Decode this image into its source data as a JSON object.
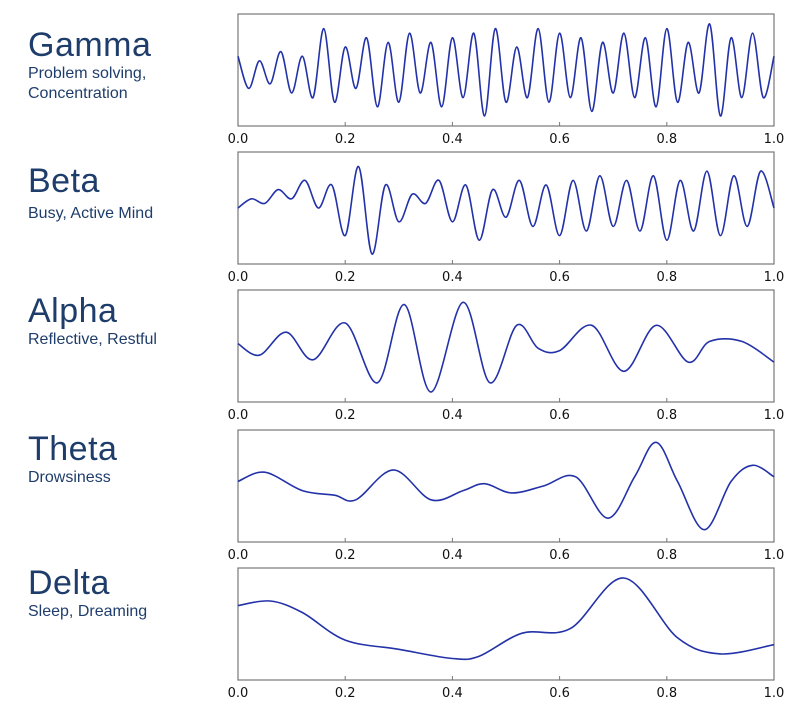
{
  "bands": [
    {
      "name": "Gamma",
      "description": [
        "Problem solving,",
        "Concentration"
      ]
    },
    {
      "name": "Beta",
      "description": [
        "Busy, Active Mind"
      ]
    },
    {
      "name": "Alpha",
      "description": [
        "Reflective, Restful"
      ]
    },
    {
      "name": "Theta",
      "description": [
        "Drowsiness"
      ]
    },
    {
      "name": "Delta",
      "description": [
        "Sleep, Dreaming"
      ]
    }
  ],
  "colors": {
    "trace": "#2332a8",
    "label": "#1f3d6b",
    "frame": "#777777"
  },
  "chart_data": [
    {
      "type": "line",
      "series_label": "Gamma",
      "xlim": [
        0,
        1
      ],
      "x_ticks": [
        "0.0",
        "0.2",
        "0.4",
        "0.6",
        "0.8",
        "1.0"
      ],
      "x": [
        0,
        0.02,
        0.04,
        0.06,
        0.08,
        0.1,
        0.12,
        0.14,
        0.16,
        0.18,
        0.2,
        0.22,
        0.24,
        0.26,
        0.28,
        0.3,
        0.32,
        0.34,
        0.36,
        0.38,
        0.4,
        0.42,
        0.44,
        0.46,
        0.48,
        0.5,
        0.52,
        0.54,
        0.56,
        0.58,
        0.6,
        0.62,
        0.64,
        0.66,
        0.68,
        0.7,
        0.72,
        0.74,
        0.76,
        0.78,
        0.8,
        0.82,
        0.84,
        0.86,
        0.88,
        0.9,
        0.92,
        0.94,
        0.96,
        0.98,
        1.0
      ],
      "y": [
        0.3,
        -0.4,
        0.2,
        -0.3,
        0.4,
        -0.5,
        0.3,
        -0.6,
        0.9,
        -0.7,
        0.5,
        -0.4,
        0.7,
        -0.8,
        0.6,
        -0.7,
        0.8,
        -0.5,
        0.6,
        -0.8,
        0.7,
        -0.6,
        0.8,
        -1.0,
        0.9,
        -0.7,
        0.5,
        -0.6,
        0.9,
        -0.7,
        0.8,
        -0.6,
        0.7,
        -0.9,
        0.6,
        -0.5,
        0.8,
        -0.6,
        0.7,
        -0.8,
        0.9,
        -0.7,
        0.6,
        -0.5,
        1.0,
        -1.0,
        0.7,
        -0.6,
        0.8,
        -0.6,
        0.3
      ]
    },
    {
      "type": "line",
      "series_label": "Beta",
      "xlim": [
        0,
        1
      ],
      "x_ticks": [
        "0.0",
        "0.2",
        "0.4",
        "0.6",
        "0.8",
        "1.0"
      ],
      "x": [
        0,
        0.025,
        0.05,
        0.075,
        0.1,
        0.125,
        0.15,
        0.175,
        0.2,
        0.225,
        0.25,
        0.275,
        0.3,
        0.325,
        0.35,
        0.375,
        0.4,
        0.425,
        0.45,
        0.475,
        0.5,
        0.525,
        0.55,
        0.575,
        0.6,
        0.625,
        0.65,
        0.675,
        0.7,
        0.725,
        0.75,
        0.775,
        0.8,
        0.825,
        0.85,
        0.875,
        0.9,
        0.925,
        0.95,
        0.975,
        1.0
      ],
      "y": [
        0.0,
        0.2,
        0.1,
        0.4,
        0.2,
        0.6,
        0.0,
        0.5,
        -0.6,
        0.9,
        -1.0,
        0.5,
        -0.3,
        0.3,
        0.1,
        0.6,
        -0.3,
        0.5,
        -0.7,
        0.4,
        -0.2,
        0.6,
        -0.4,
        0.5,
        -0.6,
        0.6,
        -0.5,
        0.7,
        -0.4,
        0.6,
        -0.5,
        0.7,
        -0.7,
        0.6,
        -0.5,
        0.8,
        -0.6,
        0.7,
        -0.4,
        0.8,
        0.0
      ]
    },
    {
      "type": "line",
      "series_label": "Alpha",
      "xlim": [
        0,
        1
      ],
      "x_ticks": [
        "0.0",
        "0.2",
        "0.4",
        "0.6",
        "0.8",
        "1.0"
      ],
      "x": [
        0,
        0.04,
        0.09,
        0.14,
        0.2,
        0.26,
        0.31,
        0.36,
        0.42,
        0.47,
        0.52,
        0.56,
        0.6,
        0.66,
        0.72,
        0.78,
        0.84,
        0.88,
        0.94,
        1.0
      ],
      "y": [
        0.05,
        -0.2,
        0.3,
        -0.3,
        0.5,
        -0.8,
        0.9,
        -1.0,
        0.95,
        -0.8,
        0.45,
        -0.05,
        -0.1,
        0.45,
        -0.55,
        0.45,
        -0.35,
        0.1,
        0.1,
        -0.35
      ]
    },
    {
      "type": "line",
      "series_label": "Theta",
      "xlim": [
        0,
        1
      ],
      "x_ticks": [
        "0.0",
        "0.2",
        "0.4",
        "0.6",
        "0.8",
        "1.0"
      ],
      "x": [
        0,
        0.05,
        0.12,
        0.18,
        0.22,
        0.29,
        0.36,
        0.42,
        0.46,
        0.51,
        0.57,
        0.63,
        0.69,
        0.74,
        0.78,
        0.82,
        0.87,
        0.92,
        0.96,
        1.0
      ],
      "y": [
        0.1,
        0.3,
        -0.1,
        -0.2,
        -0.3,
        0.35,
        -0.3,
        -0.1,
        0.05,
        -0.15,
        0.0,
        0.2,
        -0.7,
        0.2,
        0.95,
        0.1,
        -0.95,
        0.1,
        0.45,
        0.2
      ]
    },
    {
      "type": "line",
      "series_label": "Delta",
      "xlim": [
        0,
        1
      ],
      "x_ticks": [
        "0.0",
        "0.2",
        "0.4",
        "0.6",
        "0.8",
        "1.0"
      ],
      "x": [
        0,
        0.06,
        0.12,
        0.2,
        0.3,
        0.4,
        0.45,
        0.53,
        0.62,
        0.72,
        0.82,
        0.9,
        1.0
      ],
      "y": [
        0.4,
        0.5,
        0.25,
        -0.35,
        -0.55,
        -0.75,
        -0.7,
        -0.2,
        -0.1,
        1.0,
        -0.3,
        -0.65,
        -0.45
      ]
    }
  ]
}
